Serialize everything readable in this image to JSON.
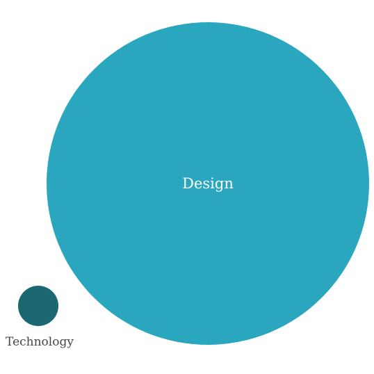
{
  "colors": {
    "background": "#ffffff",
    "label_inside": "#ffffff",
    "label_outside": "#444444"
  },
  "chart_data": {
    "type": "bubble",
    "title": "",
    "legend": "none",
    "grid": false,
    "bubbles": [
      {
        "label": "Design",
        "value": 64,
        "color": "#2aa6bf",
        "label_position": "inside"
      },
      {
        "label": "Technology",
        "value": 1,
        "color": "#1b6772",
        "label_position": "below"
      }
    ]
  }
}
